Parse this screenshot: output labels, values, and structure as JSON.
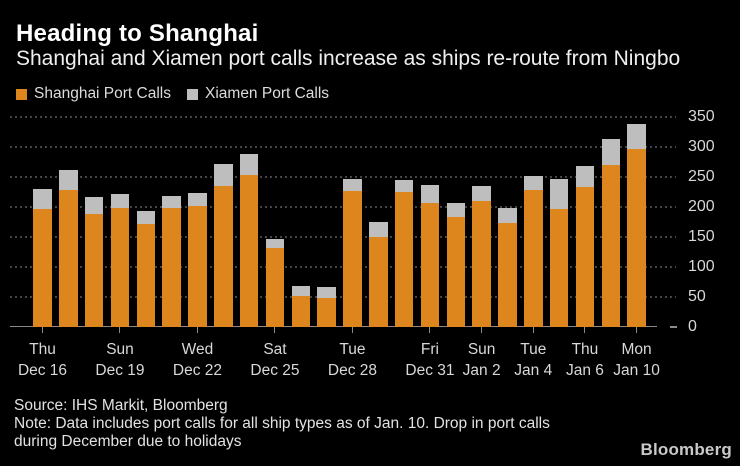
{
  "header": {
    "title": "Heading to Shanghai",
    "subtitle": "Shanghai and Xiamen port calls increase as ships re-route from Ningbo"
  },
  "legend": [
    {
      "label": "Shanghai Port Calls",
      "color": "#de861e"
    },
    {
      "label": "Xiamen Port Calls",
      "color": "#bebebe"
    }
  ],
  "chart_data": {
    "type": "bar",
    "stacked": true,
    "n_bars": 24,
    "series": [
      {
        "name": "Shanghai Port Calls",
        "color": "#de861e",
        "values": [
          197,
          228,
          189,
          198,
          171,
          198,
          202,
          235,
          254,
          131,
          52,
          49,
          226,
          150,
          225,
          207,
          184,
          210,
          174,
          228,
          196,
          233,
          270,
          297
        ]
      },
      {
        "name": "Xiamen Port Calls",
        "color": "#bebebe",
        "values": [
          33,
          34,
          28,
          24,
          22,
          21,
          22,
          37,
          34,
          16,
          16,
          17,
          21,
          25,
          20,
          29,
          23,
          25,
          25,
          24,
          50,
          36,
          44,
          41
        ]
      }
    ],
    "x_ticks": [
      {
        "bar_index": 0,
        "day": "Thu",
        "date": "Dec 16"
      },
      {
        "bar_index": 3,
        "day": "Sun",
        "date": "Dec 19"
      },
      {
        "bar_index": 6,
        "day": "Wed",
        "date": "Dec 22"
      },
      {
        "bar_index": 9,
        "day": "Sat",
        "date": "Dec 25"
      },
      {
        "bar_index": 12,
        "day": "Tue",
        "date": "Dec 28"
      },
      {
        "bar_index": 15,
        "day": "Fri",
        "date": "Dec 31"
      },
      {
        "bar_index": 17,
        "day": "Sun",
        "date": "Jan 2"
      },
      {
        "bar_index": 19,
        "day": "Tue",
        "date": "Jan 4"
      },
      {
        "bar_index": 21,
        "day": "Thu",
        "date": "Jan 6"
      },
      {
        "bar_index": 23,
        "day": "Mon",
        "date": "Jan 10"
      }
    ],
    "y_ticks": [
      0,
      50,
      100,
      150,
      200,
      250,
      300,
      350
    ],
    "ylim": [
      0,
      350
    ],
    "grid": "dotted-horizontal",
    "y_axis_side": "right",
    "legend_position": "top-left",
    "title": "Heading to Shanghai",
    "xlabel": "",
    "ylabel": ""
  },
  "footer": {
    "source": "Source: IHS Markit, Bloomberg",
    "note_line1": "Note: Data includes port calls for all ship types as of Jan. 10. Drop in port calls",
    "note_line2": "during December due to holidays",
    "logo": "Bloomberg"
  },
  "colors": {
    "background": "#000000",
    "shanghai_orange": "#de861e",
    "xiamen_gray": "#bebebe",
    "gridline": "#454545",
    "axis_line": "#8a8a8a",
    "axis_text": "#d8d8d8",
    "title_text": "#ffffff",
    "footer_text": "#e2e2e2"
  }
}
